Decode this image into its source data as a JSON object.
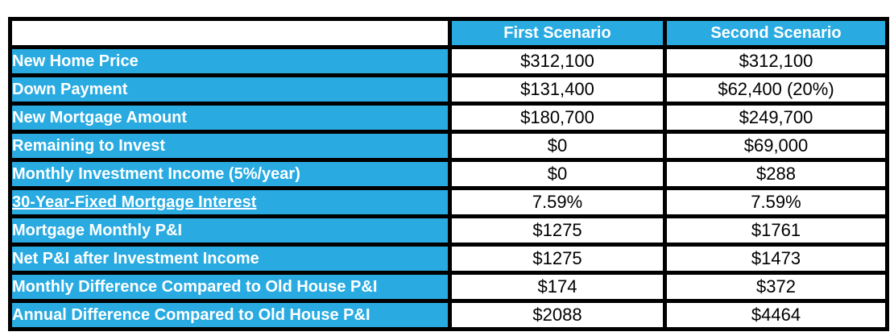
{
  "table": {
    "colors": {
      "accent": "#29ABE2",
      "border": "#000000",
      "label_text": "#FFFFFF",
      "value_text": "#000000",
      "value_bg": "#FFFFFF"
    },
    "header": {
      "first": "First Scenario",
      "second": "Second Scenario"
    },
    "rows": [
      {
        "label": "New Home Price",
        "first": "$312,100",
        "second": "$312,100",
        "underline": false
      },
      {
        "label": "Down Payment",
        "first": "$131,400",
        "second": "$62,400 (20%)",
        "underline": false
      },
      {
        "label": "New Mortgage Amount",
        "first": "$180,700",
        "second": "$249,700",
        "underline": false
      },
      {
        "label": "Remaining to Invest",
        "first": "$0",
        "second": "$69,000",
        "underline": false
      },
      {
        "label": "Monthly Investment Income (5%/year)",
        "first": "$0",
        "second": "$288",
        "underline": false
      },
      {
        "label": "30-Year-Fixed Mortgage Interest",
        "first": "7.59%",
        "second": "7.59%",
        "underline": true
      },
      {
        "label": "Mortgage Monthly P&I",
        "first": "$1275",
        "second": "$1761",
        "underline": false
      },
      {
        "label": "Net P&I after Investment Income",
        "first": "$1275",
        "second": "$1473",
        "underline": false
      },
      {
        "label": "Monthly Difference Compared to Old House P&I",
        "first": "$174",
        "second": "$372",
        "underline": false
      },
      {
        "label": "Annual Difference Compared to Old House P&I",
        "first": "$2088",
        "second": "$4464",
        "underline": false
      }
    ]
  }
}
